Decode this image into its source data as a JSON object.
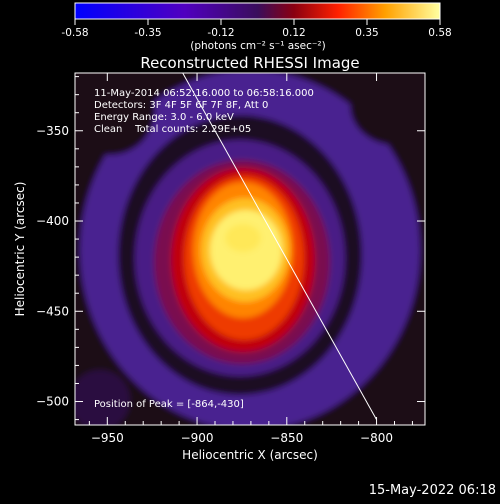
{
  "chart_data": {
    "type": "heatmap",
    "title": "Reconstructed RHESSI Image",
    "xlabel": "Heliocentric X (arcsec)",
    "ylabel": "Heliocentric Y (arcsec)",
    "xlim": [
      -968,
      -773
    ],
    "ylim": [
      -513,
      -318
    ],
    "x_ticks": [
      -950,
      -900,
      -850,
      -800
    ],
    "y_ticks": [
      -350,
      -400,
      -450,
      -500
    ],
    "colorbar": {
      "ticks": [
        "-0.58",
        "-0.35",
        "-0.12",
        "0.12",
        "0.35",
        "0.58"
      ],
      "range": [
        -0.58,
        0.58
      ],
      "unit_label": "(photons cm⁻² s⁻¹ asec⁻²)"
    },
    "annotations": [
      "11-May-2014 06:52:16.000 to 06:58:16.000",
      "Detectors: 3F 4F 5F 6F 7F 8F, Att 0",
      "Energy Range: 3.0 - 6.0 keV",
      "Clean    Total counts: 2.29E+05"
    ],
    "peak_label": "Position of Peak = [-864,-430]",
    "peak": [
      -864,
      -430
    ],
    "limb_line": [
      [
        -908,
        -318
      ],
      [
        -800,
        -510
      ]
    ],
    "timestamp": "15-May-2022 06:18",
    "colors": {
      "background": "#000000",
      "text": "#ffffff",
      "limb": "#ffffff"
    }
  }
}
